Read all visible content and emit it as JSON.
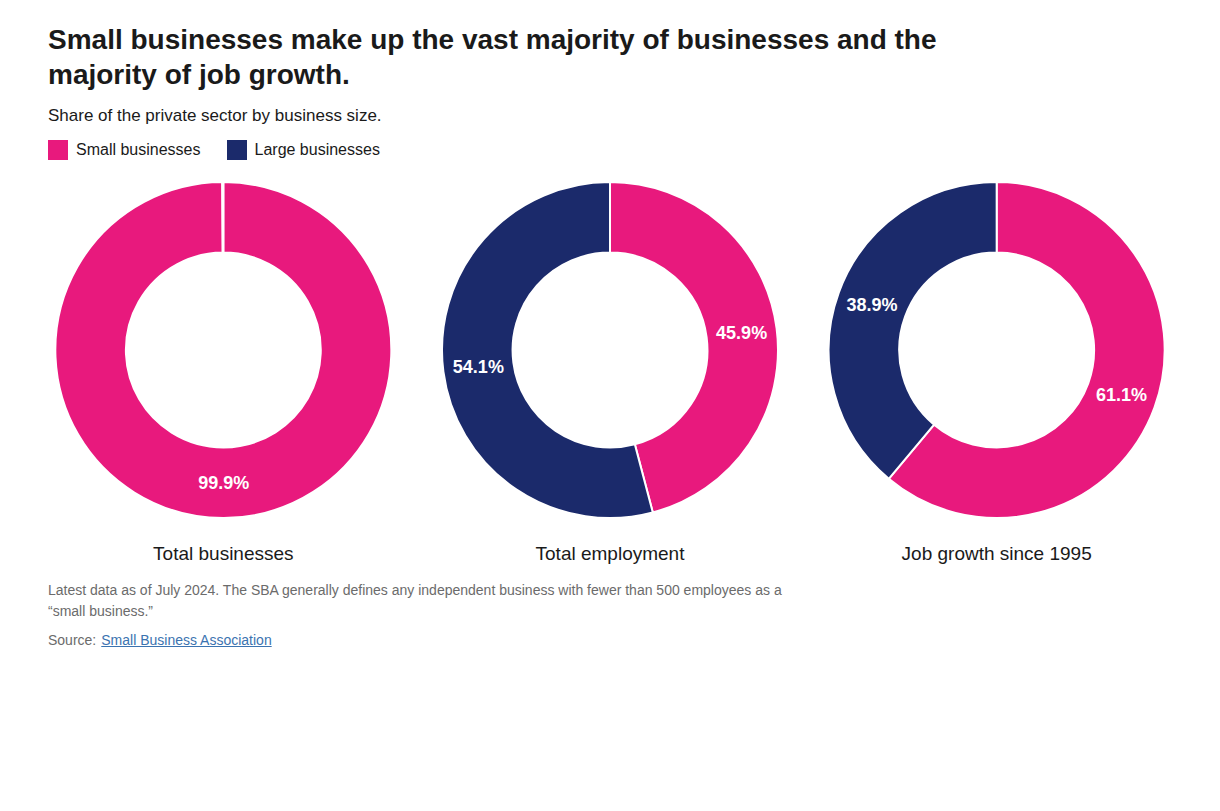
{
  "title": "Small businesses make up the vast majority of businesses and the\nmajority of job growth.",
  "subtitle": "Share of the private sector by business size.",
  "footnote": [
    "Latest data as of July 2024. The SBA generally defines any independent business with fewer than 500 employees as a",
    "“small business.”"
  ],
  "source_label": "Source:",
  "source": "Small Business Association",
  "chart_data": [
    {
      "type": "pie",
      "title": "Total businesses",
      "categories": [
        "Small businesses",
        "Large businesses"
      ],
      "values": [
        99.9,
        0.1
      ],
      "value_labels": [
        "99.9%",
        null
      ],
      "colors": [
        "#E8197D",
        "#1B2A6B"
      ],
      "data_labels": true,
      "legend": "top-left"
    },
    {
      "type": "pie",
      "title": "Total employment",
      "categories": [
        "Small businesses",
        "Large businesses"
      ],
      "values": [
        45.9,
        54.1
      ],
      "value_labels": [
        "45.9%",
        "54.1%"
      ],
      "colors": [
        "#E8197D",
        "#1B2A6B"
      ],
      "data_labels": true
    },
    {
      "type": "pie",
      "title": "Job growth since 1995",
      "categories": [
        "Small businesses",
        "Large businesses"
      ],
      "values": [
        61.1,
        38.9
      ],
      "value_labels": [
        "61.1%",
        "38.9%"
      ],
      "colors": [
        "#E8197D",
        "#1B2A6B"
      ],
      "data_labels": true
    }
  ]
}
